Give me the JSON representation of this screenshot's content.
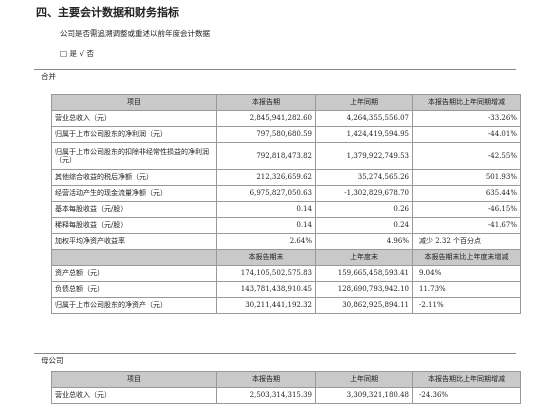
{
  "section_title": "四、主要会计数据和财务指标",
  "question": "公司是否需追溯调整或重述以前年度会计数据",
  "answer": "□ 是 √ 否",
  "group_consolidated": "合并",
  "group_parent": "母公司",
  "table1": {
    "headers": [
      "项目",
      "本报告期",
      "上年同期",
      "本报告期比上年同期增减"
    ],
    "rows": [
      [
        "营业总收入（元）",
        "2,845,941,282.60",
        "4,264,355,556.07",
        "-33.26%"
      ],
      [
        "归属于上市公司股东的净利润（元）",
        "797,580,680.59",
        "1,424,419,594.95",
        "-44.01%"
      ],
      [
        "归属于上市公司股东的扣除非经常性损益的净利润（元）",
        "792,818,473.82",
        "1,379,922,749.53",
        "-42.55%"
      ],
      [
        "其他综合收益的税后净额（元）",
        "212,326,659.62",
        "35,274,565.26",
        "501.93%"
      ],
      [
        "经营活动产生的现金流量净额（元）",
        "6,975,827,050.63",
        "-1,302,829,678.70",
        "635.44%"
      ],
      [
        "基本每股收益（元/股）",
        "0.14",
        "0.26",
        "-46.15%"
      ],
      [
        "稀释每股收益（元/股）",
        "0.14",
        "0.24",
        "-41.67%"
      ],
      [
        "加权平均净资产收益率",
        "2.64%",
        "4.96%",
        "减少 2.32 个百分点"
      ]
    ],
    "headers2": [
      "",
      "本报告期末",
      "上年度末",
      "本报告期末比上年度末增减"
    ],
    "rows2": [
      [
        "资产总额（元）",
        "174,105,502,575.83",
        "159,665,458,593.41",
        "9.04%"
      ],
      [
        "负债总额（元）",
        "143,781,438,910.45",
        "128,690,793,942.10",
        "11.73%"
      ],
      [
        "归属于上市公司股东的净资产（元）",
        "30,211,441,192.32",
        "30,862,925,894.11",
        "-2.11%"
      ]
    ]
  },
  "table2": {
    "headers": [
      "项目",
      "本报告期",
      "上年同期",
      "本报告期比上年同期增减"
    ],
    "rows": [
      [
        "营业总收入（元）",
        "2,503,314,315.39",
        "3,309,321,180.48",
        "-24.36%"
      ]
    ]
  }
}
